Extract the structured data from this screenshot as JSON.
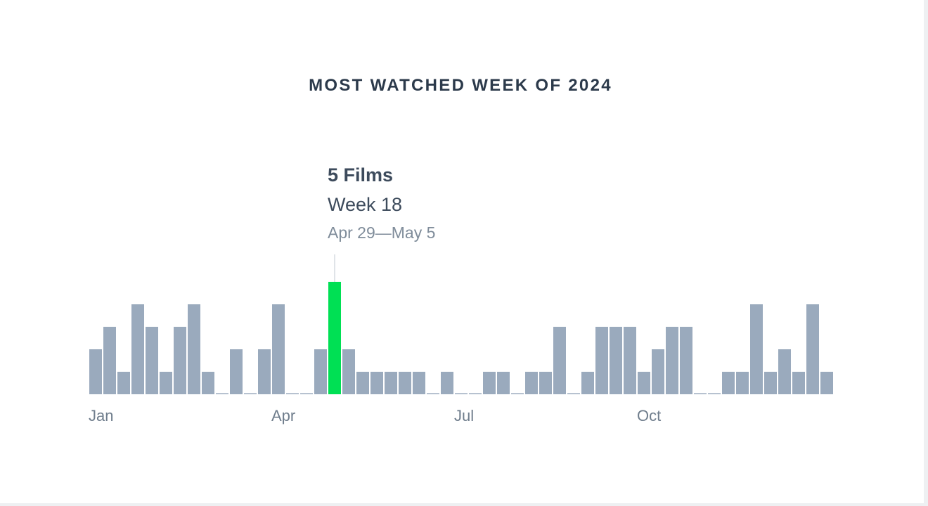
{
  "title": "MOST WATCHED WEEK OF 2024",
  "tooltip": {
    "count_label": "5 Films",
    "week_label": "Week 18",
    "range_label": "Apr 29—May 5"
  },
  "chart_data": {
    "type": "bar",
    "title": "MOST WATCHED WEEK OF 2024",
    "xlabel": "",
    "ylabel": "",
    "x": [
      1,
      2,
      3,
      4,
      5,
      6,
      7,
      8,
      9,
      10,
      11,
      12,
      13,
      14,
      15,
      16,
      17,
      18,
      19,
      20,
      21,
      22,
      23,
      24,
      25,
      26,
      27,
      28,
      29,
      30,
      31,
      32,
      33,
      34,
      35,
      36,
      37,
      38,
      39,
      40,
      41,
      42,
      43,
      44,
      45,
      46,
      47,
      48,
      49,
      50,
      51,
      52,
      53
    ],
    "values": [
      2,
      3,
      1,
      4,
      3,
      1,
      3,
      4,
      1,
      0,
      2,
      0,
      2,
      4,
      0,
      0,
      2,
      5,
      2,
      1,
      1,
      1,
      1,
      1,
      0,
      1,
      0,
      0,
      1,
      1,
      0,
      1,
      1,
      3,
      0,
      1,
      3,
      3,
      3,
      1,
      2,
      3,
      3,
      0,
      0,
      1,
      1,
      4,
      1,
      2,
      1,
      4,
      1
    ],
    "highlight_week": 18,
    "ylim": [
      0,
      5
    ],
    "x_tick_labels": [
      {
        "label": "Jan",
        "week": 1
      },
      {
        "label": "Apr",
        "week": 14
      },
      {
        "label": "Jul",
        "week": 27
      },
      {
        "label": "Oct",
        "week": 40
      }
    ],
    "grid": false,
    "legend": "none",
    "colors": {
      "bar": "#9aaabd",
      "highlight": "#00e054",
      "tick_text": "#6f7d8c"
    }
  }
}
